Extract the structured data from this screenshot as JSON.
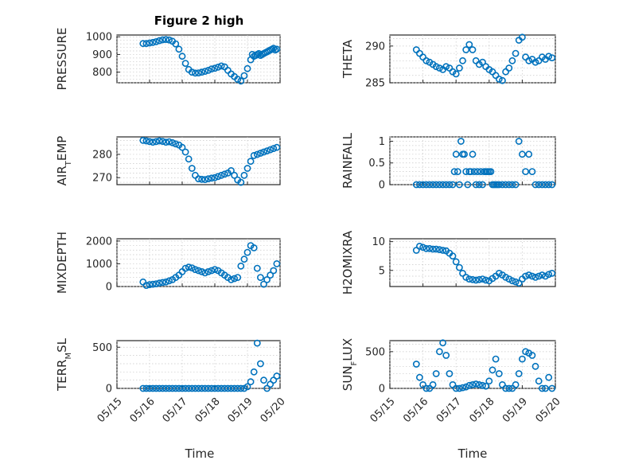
{
  "figure": {
    "title": "Figure 2 high",
    "xlabel": "Time",
    "colors": {
      "marker": "#0072BD",
      "axis": "#262626",
      "grid": "#c8c8c8"
    }
  },
  "chart_data": [
    {
      "type": "scatter",
      "panel": "top-left",
      "ylabel_main": "PRESSURE",
      "ylabel_sub": "",
      "ylim": [
        740,
        1010
      ],
      "yticks": [
        "800",
        "900",
        "1000"
      ],
      "grid": true,
      "xlim": [
        "05/15",
        "05/20"
      ],
      "xticks": [],
      "x": [
        0.8,
        0.9,
        1.0,
        1.1,
        1.2,
        1.3,
        1.4,
        1.5,
        1.6,
        1.7,
        1.8,
        1.9,
        2.0,
        2.1,
        2.2,
        2.3,
        2.4,
        2.5,
        2.6,
        2.7,
        2.8,
        2.9,
        3.0,
        3.1,
        3.2,
        3.3,
        3.4,
        3.5,
        3.6,
        3.7,
        3.8,
        3.9,
        4.0,
        4.1,
        4.15,
        4.2,
        4.25,
        4.3,
        4.35,
        4.4,
        4.45,
        4.5,
        4.55,
        4.6,
        4.65,
        4.7,
        4.75,
        4.8,
        4.85,
        4.9
      ],
      "y": [
        962,
        962,
        965,
        968,
        972,
        978,
        983,
        985,
        982,
        975,
        960,
        930,
        890,
        850,
        815,
        800,
        795,
        796,
        800,
        805,
        810,
        818,
        822,
        828,
        835,
        830,
        810,
        790,
        775,
        760,
        750,
        780,
        820,
        870,
        900,
        890,
        895,
        900,
        905,
        895,
        900,
        905,
        910,
        915,
        920,
        925,
        930,
        935,
        925,
        930
      ]
    },
    {
      "type": "scatter",
      "panel": "top-right",
      "ylabel_main": "THETA",
      "ylabel_sub": "",
      "ylim": [
        285,
        291.5
      ],
      "yticks": [
        "285",
        "290"
      ],
      "grid": true,
      "xlim": [
        "05/15",
        "05/20"
      ],
      "xticks": [],
      "x": [
        0.8,
        0.9,
        1.0,
        1.1,
        1.2,
        1.3,
        1.4,
        1.5,
        1.6,
        1.7,
        1.8,
        1.9,
        2.0,
        2.1,
        2.2,
        2.3,
        2.4,
        2.5,
        2.6,
        2.7,
        2.8,
        2.9,
        3.0,
        3.1,
        3.2,
        3.3,
        3.4,
        3.5,
        3.6,
        3.7,
        3.8,
        3.9,
        4.0,
        4.1,
        4.2,
        4.3,
        4.4,
        4.5,
        4.6,
        4.7,
        4.8,
        4.9
      ],
      "y": [
        289.5,
        289.0,
        288.5,
        288.0,
        287.8,
        287.5,
        287.2,
        287.0,
        286.8,
        287.2,
        287.0,
        286.5,
        286.2,
        287.0,
        288.0,
        289.5,
        290.2,
        289.5,
        288.0,
        287.5,
        287.8,
        287.2,
        286.8,
        286.5,
        286.0,
        285.5,
        285.3,
        286.5,
        287.0,
        288.0,
        289.0,
        290.8,
        291.2,
        288.5,
        288.0,
        288.2,
        287.8,
        288.0,
        288.5,
        288.2,
        288.6,
        288.4
      ]
    },
    {
      "type": "scatter",
      "panel": "row2-left",
      "ylabel_main": "AIR",
      "ylabel_sub": "TEMP",
      "ylabel_display": "AIR_TEMP",
      "ylim": [
        267,
        287.5
      ],
      "yticks": [
        "270",
        "280"
      ],
      "grid": true,
      "xlim": [
        "05/15",
        "05/20"
      ],
      "xticks": [],
      "x": [
        0.8,
        0.9,
        1.0,
        1.1,
        1.2,
        1.3,
        1.4,
        1.5,
        1.6,
        1.7,
        1.8,
        1.9,
        2.0,
        2.1,
        2.2,
        2.3,
        2.4,
        2.5,
        2.6,
        2.7,
        2.8,
        2.9,
        3.0,
        3.1,
        3.2,
        3.3,
        3.4,
        3.5,
        3.6,
        3.7,
        3.8,
        3.9,
        4.0,
        4.1,
        4.2,
        4.3,
        4.4,
        4.5,
        4.6,
        4.7,
        4.8,
        4.9
      ],
      "y": [
        286,
        285.8,
        285.5,
        285.2,
        285.5,
        285.8,
        285.6,
        285.2,
        285.4,
        285,
        284.5,
        284,
        283,
        281,
        278,
        274,
        271,
        269.5,
        269.3,
        269.2,
        269.5,
        269.8,
        270,
        270.5,
        271,
        271.5,
        272,
        273,
        271,
        269,
        268,
        271,
        274,
        277,
        279.5,
        280,
        280.5,
        281,
        281.5,
        282,
        282.5,
        283
      ]
    },
    {
      "type": "scatter",
      "panel": "row2-right",
      "ylabel_main": "RAINFALL",
      "ylabel_sub": "",
      "ylim": [
        0,
        1.1
      ],
      "yticks": [
        "0",
        "0.5",
        "1"
      ],
      "grid": true,
      "xlim": [
        "05/15",
        "05/20"
      ],
      "xticks": [],
      "x": [
        0.8,
        0.9,
        1.0,
        1.1,
        1.2,
        1.3,
        1.4,
        1.5,
        1.6,
        1.7,
        1.8,
        1.9,
        1.95,
        2.0,
        2.05,
        2.1,
        2.15,
        2.2,
        2.25,
        2.3,
        2.35,
        2.4,
        2.45,
        2.5,
        2.55,
        2.6,
        2.65,
        2.7,
        2.75,
        2.8,
        2.85,
        2.9,
        2.95,
        3.0,
        3.05,
        3.1,
        3.15,
        3.2,
        3.25,
        3.3,
        3.4,
        3.5,
        3.6,
        3.7,
        3.8,
        3.9,
        4.0,
        4.1,
        4.2,
        4.3,
        4.4,
        4.5,
        4.6,
        4.7,
        4.8,
        4.9
      ],
      "y": [
        0,
        0,
        0,
        0,
        0,
        0,
        0,
        0,
        0,
        0,
        0,
        0,
        0.3,
        0.7,
        0.3,
        0,
        1.0,
        0.7,
        0.7,
        0.3,
        0,
        0.3,
        0.3,
        0.7,
        0.3,
        0,
        0.3,
        0,
        0.3,
        0,
        0.3,
        0.3,
        0.3,
        0.3,
        0.3,
        0,
        0,
        0,
        0,
        0,
        0,
        0,
        0,
        0,
        0,
        1.0,
        0.7,
        0.3,
        0.7,
        0.3,
        0,
        0,
        0,
        0,
        0,
        0
      ]
    },
    {
      "type": "scatter",
      "panel": "row3-left",
      "ylabel_main": "MIXDEPTH",
      "ylabel_sub": "",
      "ylim": [
        0,
        2100
      ],
      "yticks": [
        "0",
        "1000",
        "2000"
      ],
      "grid": true,
      "xlim": [
        "05/15",
        "05/20"
      ],
      "xticks": [],
      "x": [
        0.8,
        0.9,
        1.0,
        1.1,
        1.2,
        1.3,
        1.4,
        1.5,
        1.6,
        1.7,
        1.8,
        1.9,
        2.0,
        2.1,
        2.2,
        2.3,
        2.4,
        2.5,
        2.6,
        2.7,
        2.8,
        2.9,
        3.0,
        3.1,
        3.2,
        3.3,
        3.4,
        3.5,
        3.6,
        3.7,
        3.8,
        3.9,
        4.0,
        4.1,
        4.2,
        4.3,
        4.4,
        4.5,
        4.6,
        4.7,
        4.8,
        4.9
      ],
      "y": [
        200,
        50,
        80,
        100,
        120,
        150,
        180,
        200,
        250,
        300,
        400,
        500,
        650,
        800,
        850,
        820,
        750,
        700,
        650,
        600,
        650,
        700,
        750,
        700,
        600,
        500,
        400,
        300,
        350,
        400,
        900,
        1200,
        1500,
        1800,
        1700,
        800,
        400,
        100,
        300,
        500,
        700,
        1000
      ]
    },
    {
      "type": "scatter",
      "panel": "row3-right",
      "ylabel_main": "H2OMIXRA",
      "ylabel_sub": "",
      "ylim": [
        2.2,
        10.5
      ],
      "yticks": [
        "5",
        "10"
      ],
      "grid": true,
      "xlim": [
        "05/15",
        "05/20"
      ],
      "xticks": [],
      "x": [
        0.8,
        0.9,
        1.0,
        1.1,
        1.2,
        1.3,
        1.4,
        1.5,
        1.6,
        1.7,
        1.8,
        1.9,
        2.0,
        2.1,
        2.2,
        2.3,
        2.4,
        2.5,
        2.6,
        2.7,
        2.8,
        2.9,
        3.0,
        3.1,
        3.2,
        3.3,
        3.4,
        3.5,
        3.6,
        3.7,
        3.8,
        3.9,
        4.0,
        4.1,
        4.2,
        4.3,
        4.4,
        4.5,
        4.6,
        4.7,
        4.8,
        4.9
      ],
      "y": [
        8.5,
        9.2,
        9.0,
        8.8,
        8.8,
        8.7,
        8.7,
        8.6,
        8.5,
        8.4,
        8.0,
        7.5,
        6.5,
        5.5,
        4.5,
        3.8,
        3.5,
        3.4,
        3.3,
        3.4,
        3.5,
        3.3,
        3.2,
        3.6,
        4.0,
        4.5,
        4.2,
        3.8,
        3.5,
        3.2,
        3.0,
        2.8,
        3.5,
        4.0,
        4.2,
        4.0,
        3.8,
        4.0,
        4.2,
        4.0,
        4.3,
        4.5
      ]
    },
    {
      "type": "scatter",
      "panel": "bottom-left",
      "ylabel_main": "TERR",
      "ylabel_sub": "MSL",
      "ylabel_display": "TERR_MSL",
      "ylim": [
        0,
        580
      ],
      "yticks": [
        "0",
        "500"
      ],
      "grid": true,
      "xlim": [
        "05/15",
        "05/20"
      ],
      "xticks": [
        "05/15",
        "05/16",
        "05/17",
        "05/18",
        "05/19",
        "05/20"
      ],
      "x": [
        0.8,
        0.9,
        1.0,
        1.1,
        1.2,
        1.3,
        1.4,
        1.5,
        1.6,
        1.7,
        1.8,
        1.9,
        2.0,
        2.1,
        2.2,
        2.3,
        2.4,
        2.5,
        2.6,
        2.7,
        2.8,
        2.9,
        3.0,
        3.1,
        3.2,
        3.3,
        3.4,
        3.5,
        3.6,
        3.7,
        3.8,
        3.9,
        4.0,
        4.1,
        4.2,
        4.3,
        4.4,
        4.5,
        4.6,
        4.7,
        4.8,
        4.9
      ],
      "y": [
        0,
        0,
        0,
        0,
        0,
        0,
        0,
        0,
        0,
        0,
        0,
        0,
        0,
        0,
        0,
        0,
        0,
        0,
        0,
        0,
        0,
        0,
        0,
        0,
        0,
        0,
        0,
        0,
        0,
        0,
        0,
        0,
        20,
        80,
        200,
        550,
        300,
        100,
        0,
        50,
        100,
        150
      ]
    },
    {
      "type": "scatter",
      "panel": "bottom-right",
      "ylabel_main": "SUN",
      "ylabel_sub": "FLUX",
      "ylabel_display": "SUN_FLUX",
      "ylim": [
        0,
        650
      ],
      "yticks": [
        "0",
        "500"
      ],
      "grid": true,
      "xlim": [
        "05/15",
        "05/20"
      ],
      "xticks": [
        "05/15",
        "05/16",
        "05/17",
        "05/18",
        "05/19",
        "05/20"
      ],
      "x": [
        0.8,
        0.9,
        1.0,
        1.1,
        1.2,
        1.3,
        1.4,
        1.5,
        1.6,
        1.7,
        1.8,
        1.9,
        2.0,
        2.1,
        2.2,
        2.3,
        2.4,
        2.5,
        2.6,
        2.7,
        2.8,
        2.9,
        3.0,
        3.1,
        3.2,
        3.3,
        3.4,
        3.5,
        3.6,
        3.7,
        3.8,
        3.9,
        4.0,
        4.1,
        4.2,
        4.3,
        4.4,
        4.5,
        4.6,
        4.7,
        4.8,
        4.9
      ],
      "y": [
        330,
        150,
        50,
        0,
        0,
        50,
        200,
        500,
        620,
        450,
        200,
        50,
        0,
        0,
        10,
        20,
        40,
        50,
        60,
        50,
        40,
        30,
        100,
        250,
        400,
        200,
        50,
        0,
        0,
        0,
        50,
        200,
        400,
        500,
        480,
        450,
        300,
        100,
        0,
        0,
        150,
        0
      ]
    }
  ]
}
